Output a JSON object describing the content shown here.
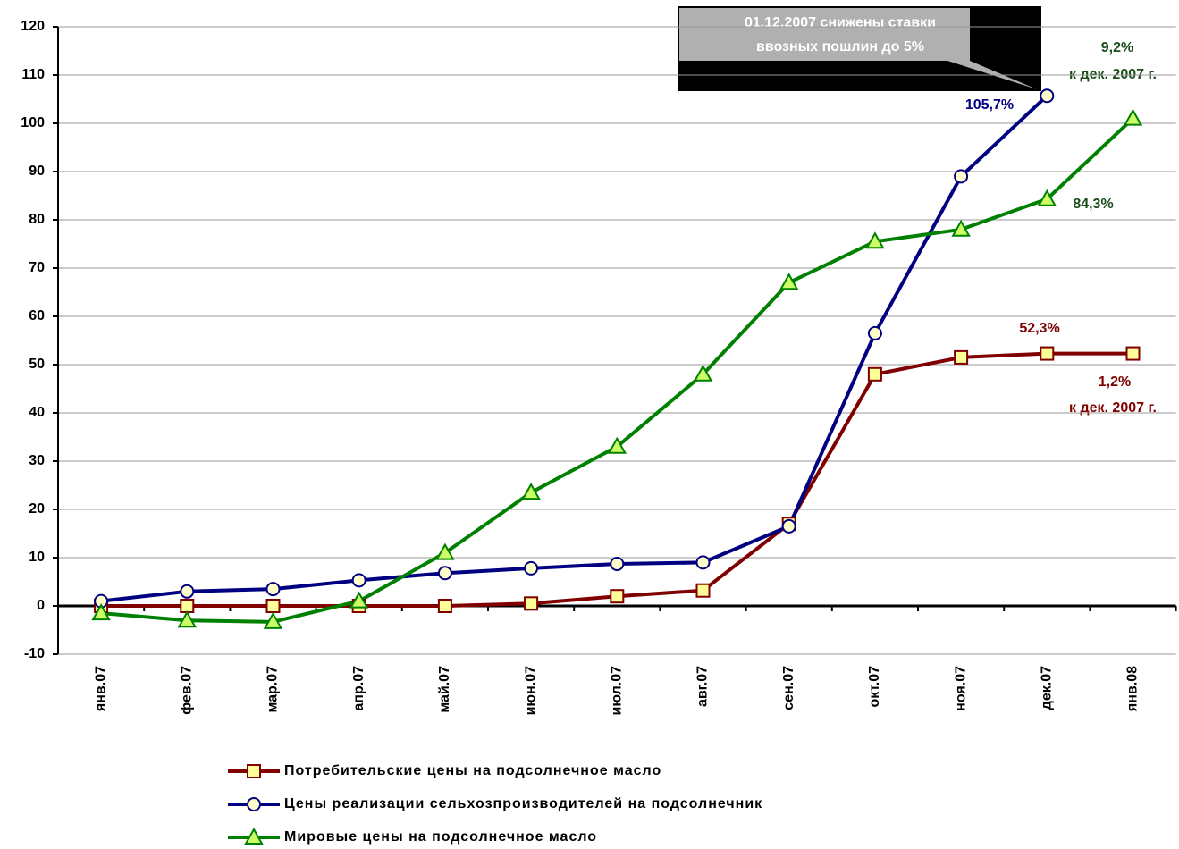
{
  "chart_data": {
    "type": "line",
    "categories": [
      "янв.07",
      "фев.07",
      "мар.07",
      "апр.07",
      "май.07",
      "июн.07",
      "июл.07",
      "авг.07",
      "сен.07",
      "окт.07",
      "ноя.07",
      "дек.07",
      "янв.08"
    ],
    "series": [
      {
        "name": "Потребительские цены на подсолнечное масло",
        "color": "#800000",
        "marker": "square",
        "values": [
          0,
          0,
          0,
          0,
          0,
          0.5,
          2,
          3.2,
          17,
          48,
          51.5,
          52.3,
          52.3
        ],
        "value_labels": [
          null,
          null,
          null,
          null,
          null,
          null,
          null,
          null,
          null,
          null,
          null,
          "52,3%",
          null
        ]
      },
      {
        "name": "Цены реализации сельхозпроизводителей на подсолнечник",
        "color": "#000080",
        "marker": "circle",
        "values": [
          1,
          3,
          3.5,
          5.3,
          6.8,
          7.8,
          8.7,
          9,
          16.5,
          56.5,
          89,
          105.7,
          null
        ],
        "value_labels": [
          null,
          null,
          null,
          null,
          null,
          null,
          null,
          null,
          null,
          null,
          null,
          "105,7%",
          null
        ]
      },
      {
        "name": "Мировые цены на подсолнечное масло",
        "color": "#008000",
        "marker": "triangle",
        "values": [
          -1.5,
          -3,
          -3.3,
          1,
          11,
          23.5,
          33,
          48,
          67,
          75.5,
          78,
          84.3,
          101
        ],
        "value_labels": [
          null,
          null,
          null,
          null,
          null,
          null,
          null,
          null,
          null,
          null,
          null,
          "84,3%",
          null
        ]
      }
    ],
    "annotations": [
      "01.12.2007 снижены ставки",
      "ввозных пошлин до 5%",
      "9,2%",
      "к дек. 2007 г.",
      "1,2%",
      "к дек. 2007 г."
    ],
    "ylim": [
      -10,
      120
    ],
    "yticks": [
      -10,
      0,
      10,
      20,
      30,
      40,
      50,
      60,
      70,
      80,
      90,
      100,
      110,
      120
    ],
    "grid": true
  }
}
